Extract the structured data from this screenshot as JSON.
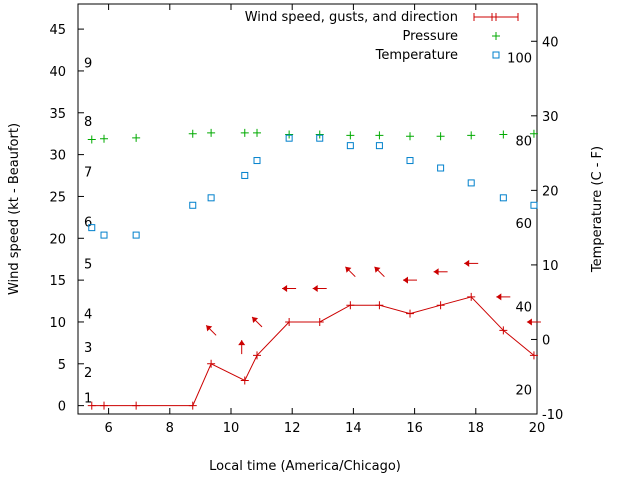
{
  "chart_data": {
    "type": "line",
    "xlabel": "Local time (America/Chicago)",
    "ylabel": "Wind speed (kt - Beaufort)",
    "y2label": "Temperature (C - F)",
    "xlim": [
      5,
      20
    ],
    "ylim": [
      -1,
      48
    ],
    "y2lim": [
      -10,
      45
    ],
    "x_ticks": [
      "6",
      "8",
      "10",
      "12",
      "14",
      "16",
      "18",
      "20"
    ],
    "y_ticks": [
      "0",
      "5",
      "10",
      "15",
      "20",
      "25",
      "30",
      "35",
      "40",
      "45"
    ],
    "y2_ticks": [
      "-10",
      "0",
      "10",
      "20",
      "30",
      "40"
    ],
    "beaufort_labels": [
      {
        "label": "1",
        "kt": 1
      },
      {
        "label": "2",
        "kt": 4
      },
      {
        "label": "3",
        "kt": 7
      },
      {
        "label": "4",
        "kt": 11
      },
      {
        "label": "5",
        "kt": 17
      },
      {
        "label": "6",
        "kt": 22
      },
      {
        "label": "7",
        "kt": 28
      },
      {
        "label": "8",
        "kt": 34
      },
      {
        "label": "9",
        "kt": 41
      }
    ],
    "fahrenheit_labels": [
      {
        "label": "20",
        "c": -6.7
      },
      {
        "label": "40",
        "c": 4.4
      },
      {
        "label": "60",
        "c": 15.6
      },
      {
        "label": "80",
        "c": 26.7
      },
      {
        "label": "100",
        "c": 37.8
      }
    ],
    "legend_position": "top-right",
    "series": [
      {
        "name": "Wind speed, gusts, and direction",
        "color": "#cc0000",
        "axis": "y",
        "x": [
          5.45,
          5.85,
          6.9,
          8.75,
          9.35,
          10.45,
          10.85,
          11.9,
          12.9,
          13.9,
          14.85,
          15.85,
          16.85,
          17.85,
          18.9,
          19.9
        ],
        "y": [
          0,
          0,
          0,
          0,
          5,
          3,
          6,
          10,
          10,
          12,
          12,
          11,
          12,
          13,
          9,
          6
        ]
      },
      {
        "name": "Pressure",
        "color": "#00aa00",
        "axis": "y",
        "x": [
          5.45,
          5.85,
          6.9,
          8.75,
          9.35,
          10.45,
          10.85,
          11.9,
          12.9,
          13.9,
          14.85,
          15.85,
          16.85,
          17.85,
          18.9,
          19.9
        ],
        "y": [
          31.8,
          31.9,
          32.0,
          32.5,
          32.6,
          32.6,
          32.6,
          32.4,
          32.4,
          32.3,
          32.3,
          32.2,
          32.2,
          32.3,
          32.4,
          32.5
        ]
      },
      {
        "name": "Temperature",
        "color": "#0080cc",
        "axis": "y2",
        "x": [
          5.45,
          5.85,
          6.9,
          8.75,
          9.35,
          10.45,
          10.85,
          11.9,
          12.9,
          13.9,
          14.85,
          15.85,
          16.85,
          17.85,
          18.9,
          19.9
        ],
        "y": [
          15,
          14,
          14,
          18,
          19,
          22,
          24,
          27,
          27,
          26,
          26,
          24,
          23,
          21,
          19,
          18
        ]
      }
    ],
    "wind_arrows": [
      {
        "x": 9.35,
        "y": 9,
        "dir": "NW"
      },
      {
        "x": 10.35,
        "y": 7,
        "dir": "N"
      },
      {
        "x": 10.85,
        "y": 10,
        "dir": "NW"
      },
      {
        "x": 11.9,
        "y": 14,
        "dir": "W"
      },
      {
        "x": 12.9,
        "y": 14,
        "dir": "W"
      },
      {
        "x": 13.9,
        "y": 16,
        "dir": "NW"
      },
      {
        "x": 14.85,
        "y": 16,
        "dir": "NW"
      },
      {
        "x": 15.85,
        "y": 15,
        "dir": "W"
      },
      {
        "x": 16.85,
        "y": 16,
        "dir": "W"
      },
      {
        "x": 17.85,
        "y": 17,
        "dir": "W"
      },
      {
        "x": 18.9,
        "y": 13,
        "dir": "W"
      },
      {
        "x": 19.9,
        "y": 10,
        "dir": "W"
      }
    ]
  }
}
